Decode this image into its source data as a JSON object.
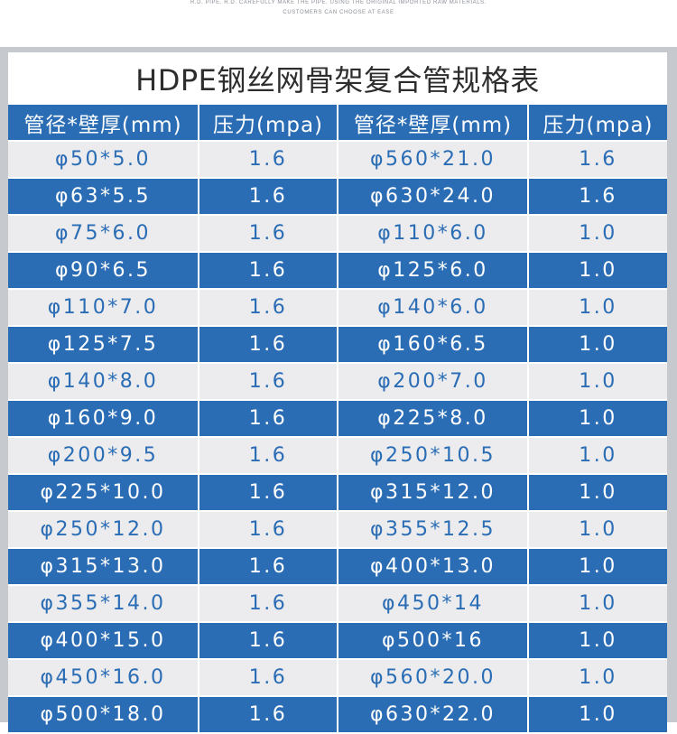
{
  "header": {
    "tagline_line1": "R.D. PIPE. R.D. CAREFULLY MAKE THE PIPE. USING THE ORIGINAL IMPORTED RAW MATERIALS.",
    "tagline_line2": "CUSTOMERS CAN CHOOSE AT EASE"
  },
  "table": {
    "title": "HDPE钢丝网骨架复合管规格表",
    "columns": [
      "管径*壁厚(mm)",
      "压力(mpa)",
      "管径*壁厚(mm)",
      "压力(mpa)"
    ],
    "rows": [
      [
        "φ50*5.0",
        "1.6",
        "φ560*21.0",
        "1.6"
      ],
      [
        "φ63*5.5",
        "1.6",
        "φ630*24.0",
        "1.6"
      ],
      [
        "φ75*6.0",
        "1.6",
        "φ110*6.0",
        "1.0"
      ],
      [
        "φ90*6.5",
        "1.6",
        "φ125*6.0",
        "1.0"
      ],
      [
        "φ110*7.0",
        "1.6",
        "φ140*6.0",
        "1.0"
      ],
      [
        "φ125*7.5",
        "1.6",
        "φ160*6.5",
        "1.0"
      ],
      [
        "φ140*8.0",
        "1.6",
        "φ200*7.0",
        "1.0"
      ],
      [
        "φ160*9.0",
        "1.6",
        "φ225*8.0",
        "1.0"
      ],
      [
        "φ200*9.5",
        "1.6",
        "φ250*10.5",
        "1.0"
      ],
      [
        "φ225*10.0",
        "1.6",
        "φ315*12.0",
        "1.0"
      ],
      [
        "φ250*12.0",
        "1.6",
        "φ355*12.5",
        "1.0"
      ],
      [
        "φ315*13.0",
        "1.6",
        "φ400*13.0",
        "1.0"
      ],
      [
        "φ355*14.0",
        "1.6",
        "φ450*14",
        "1.0"
      ],
      [
        "φ400*15.0",
        "1.6",
        "φ500*16",
        "1.0"
      ],
      [
        "φ450*16.0",
        "1.6",
        "φ560*20.0",
        "1.0"
      ],
      [
        "φ500*18.0",
        "1.6",
        "φ630*22.0",
        "1.0"
      ]
    ]
  },
  "colors": {
    "accent_blue": "#2a6db5",
    "light_row": "#ececee",
    "frame_gray": "#c6c9cd"
  }
}
